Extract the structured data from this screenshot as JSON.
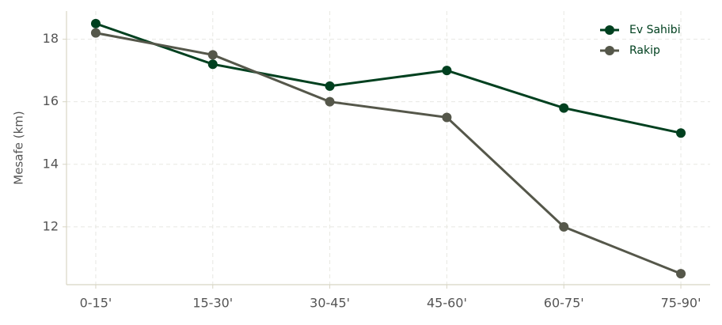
{
  "chart_data": {
    "type": "line",
    "ylabel": "Mesafe (km)",
    "categories": [
      "0-15'",
      "15-30'",
      "30-45'",
      "45-60'",
      "60-75'",
      "75-90'"
    ],
    "series": [
      {
        "name": "Ev Sahibi",
        "color": "#00401f",
        "values": [
          18.5,
          17.2,
          16.5,
          17.0,
          15.8,
          15.0
        ]
      },
      {
        "name": "Rakip",
        "color": "#55574a",
        "values": [
          18.2,
          17.5,
          16.0,
          15.5,
          12.0,
          10.5
        ]
      }
    ],
    "ylim": [
      10.15,
      18.9
    ],
    "yticks": [
      12,
      14,
      16,
      18
    ],
    "grid": true,
    "legend": "upper-right"
  }
}
